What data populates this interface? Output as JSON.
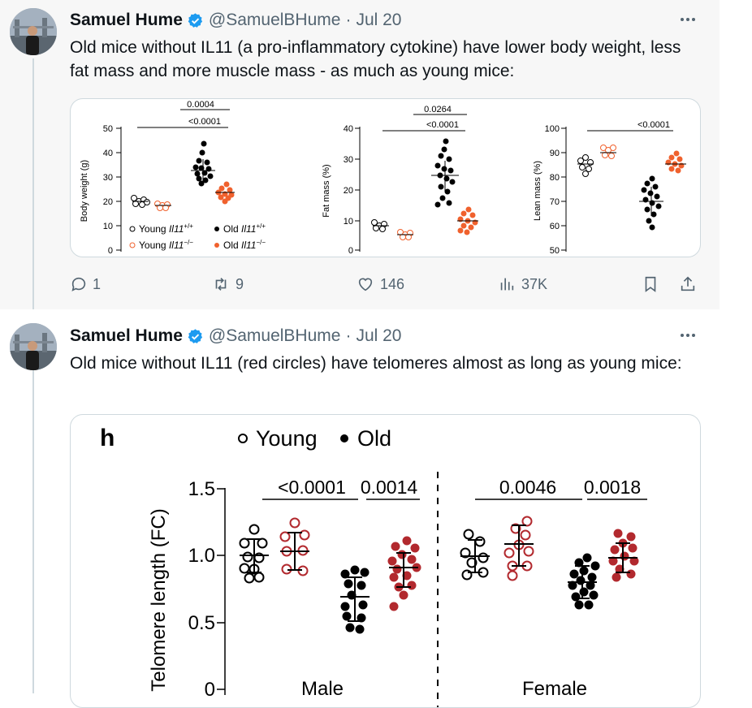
{
  "colors": {
    "verified_blue": "#1d9bf0",
    "text_secondary": "#536471",
    "orange_series": "#f0612d",
    "red_series": "#b2292e"
  },
  "tweets": [
    {
      "author": {
        "name": "Samuel Hume",
        "handle": "@SamuelBHume",
        "date": "Jul 20"
      },
      "separator": "·",
      "text": "Old mice without IL11 (a pro-inflammatory cytokine) have lower body weight, less fat mass and more muscle mass - as much as young mice:",
      "actions": {
        "replies": "1",
        "retweets": "9",
        "likes": "146",
        "views": "37K"
      },
      "figure": {
        "panels": [
          {
            "ylabel": "Body weight (g)",
            "ylim": [
              0,
              50
            ],
            "yticks": [
              "0",
              "10",
              "20",
              "30",
              "40",
              "50"
            ],
            "pvalues": [
              "0.0004",
              "<0.0001"
            ],
            "groups": [
              {
                "series": "Young Il11+/+",
                "mean": 20,
                "sd": 1.5
              },
              {
                "series": "Young Il11-/-",
                "mean": 18.5,
                "sd": 1.2
              },
              {
                "series": "Old Il11+/+",
                "mean": 32.5,
                "sd": 4.5
              },
              {
                "series": "Old Il11-/-",
                "mean": 23.5,
                "sd": 2.5
              }
            ]
          },
          {
            "ylabel": "Fat mass (%)",
            "ylim": [
              0,
              40
            ],
            "yticks": [
              "0",
              "10",
              "20",
              "30",
              "40"
            ],
            "pvalues": [
              "0.0264",
              "<0.0001"
            ],
            "groups": [
              {
                "series": "Young Il11+/+",
                "mean": 8,
                "sd": 1.2
              },
              {
                "series": "Young Il11-/-",
                "mean": 5.2,
                "sd": 1
              },
              {
                "series": "Old Il11+/+",
                "mean": 24.5,
                "sd": 5
              },
              {
                "series": "Old Il11-/-",
                "mean": 9.5,
                "sd": 2.5
              }
            ]
          },
          {
            "ylabel": "Lean mass (%)",
            "ylim": [
              50,
              100
            ],
            "yticks": [
              "50",
              "60",
              "70",
              "80",
              "90",
              "100"
            ],
            "pvalues": [
              "<0.0001"
            ],
            "groups": [
              {
                "series": "Young Il11+/+",
                "mean": 85,
                "sd": 2
              },
              {
                "series": "Young Il11-/-",
                "mean": 89.5,
                "sd": 2
              },
              {
                "series": "Old Il11+/+",
                "mean": 70,
                "sd": 6
              },
              {
                "series": "Old Il11-/-",
                "mean": 85,
                "sd": 2.5
              }
            ]
          }
        ],
        "legend": [
          {
            "prefix": "Young ",
            "gene": "Il11",
            "sup": "+/+",
            "style": "open-black"
          },
          {
            "prefix": "Old ",
            "gene": "Il11",
            "sup": "+/+",
            "style": "filled-black"
          },
          {
            "prefix": "Young ",
            "gene": "Il11",
            "sup": "−/−",
            "style": "open-orange"
          },
          {
            "prefix": "Old ",
            "gene": "Il11",
            "sup": "−/−",
            "style": "filled-orange"
          }
        ]
      }
    },
    {
      "author": {
        "name": "Samuel Hume",
        "handle": "@SamuelBHume",
        "date": "Jul 20"
      },
      "separator": "·",
      "text": "Old mice without IL11 (red circles) have telomeres almost as long as young mice:",
      "figure": {
        "panel_letter": "h",
        "legend": [
          {
            "label": "Young",
            "marker": "○"
          },
          {
            "label": "Old",
            "marker": "●"
          }
        ],
        "ylabel": "Telomere length (FC)",
        "yticks": [
          "0",
          "0.5",
          "1.0",
          "1.5"
        ],
        "ylim": [
          0,
          1.5
        ],
        "sections": [
          {
            "label": "Male",
            "pvalues": [
              "<0.0001",
              "0.0014"
            ]
          },
          {
            "label": "Female",
            "pvalues": [
              "0.0046",
              "0.0018"
            ]
          }
        ]
      }
    }
  ],
  "chart_data": [
    {
      "type": "scatter",
      "ylabel": "Body weight (g)",
      "ylim": [
        0,
        50
      ],
      "categories": [
        "Young Il11+/+",
        "Young Il11-/-",
        "Old Il11+/+",
        "Old Il11-/-"
      ],
      "values": [
        20,
        18.5,
        32.5,
        23.5
      ],
      "annotations": [
        "0.0004",
        "<0.0001"
      ]
    },
    {
      "type": "scatter",
      "ylabel": "Fat mass (%)",
      "ylim": [
        0,
        40
      ],
      "categories": [
        "Young Il11+/+",
        "Young Il11-/-",
        "Old Il11+/+",
        "Old Il11-/-"
      ],
      "values": [
        8,
        5.2,
        24.5,
        9.5
      ],
      "annotations": [
        "0.0264",
        "<0.0001"
      ]
    },
    {
      "type": "scatter",
      "ylabel": "Lean mass (%)",
      "ylim": [
        50,
        100
      ],
      "categories": [
        "Young Il11+/+",
        "Young Il11-/-",
        "Old Il11+/+",
        "Old Il11-/-"
      ],
      "values": [
        85,
        89.5,
        70,
        85
      ],
      "annotations": [
        "<0.0001"
      ]
    },
    {
      "type": "scatter",
      "ylabel": "Telomere length (FC)",
      "ylim": [
        0,
        1.5
      ],
      "categories": [
        "Male Young",
        "Male Young IL11-",
        "Male Old",
        "Male Old IL11-",
        "Female Young",
        "Female Young IL11-",
        "Female Old",
        "Female Old IL11-"
      ],
      "values": [
        1.0,
        1.03,
        0.69,
        0.9,
        1.0,
        1.09,
        0.8,
        0.99
      ],
      "annotations": [
        "<0.0001",
        "0.0014",
        "0.0046",
        "0.0018"
      ]
    }
  ]
}
